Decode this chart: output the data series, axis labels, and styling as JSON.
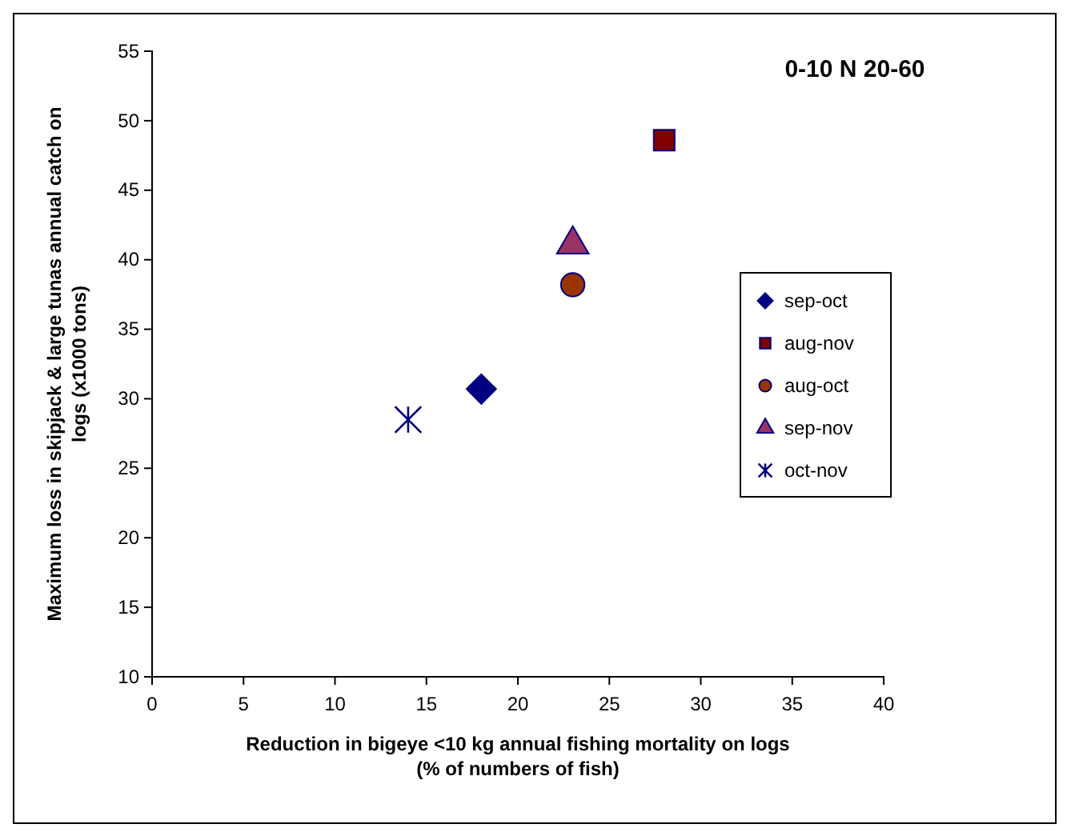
{
  "chart_data": {
    "type": "scatter",
    "title": "0-10 N 20-60",
    "xlabel": "Reduction in bigeye <10 kg annual fishing mortality on logs\n(% of numbers of fish)",
    "ylabel": "Maximum loss in skipjack & large tunas annual catch on\nlogs (x1000 tons)",
    "xlim": [
      0,
      40
    ],
    "xticks": [
      0,
      5,
      10,
      15,
      20,
      25,
      30,
      35,
      40
    ],
    "ylim": [
      10,
      55
    ],
    "yticks": [
      10,
      15,
      20,
      25,
      30,
      35,
      40,
      45,
      50,
      55
    ],
    "grid": false,
    "legend": "right",
    "series": [
      {
        "name": "sep-oct",
        "color": "#000080",
        "marker": "diamond",
        "x": [
          18
        ],
        "values": [
          30.7
        ]
      },
      {
        "name": "aug-nov",
        "color": "#800000",
        "marker": "square",
        "x": [
          28
        ],
        "values": [
          48.6
        ]
      },
      {
        "name": "aug-oct",
        "color": "#993300",
        "marker": "circle",
        "x": [
          23
        ],
        "values": [
          38.2
        ]
      },
      {
        "name": "sep-nov",
        "color": "#993366",
        "marker": "triangle",
        "x": [
          23
        ],
        "values": [
          41.1
        ]
      },
      {
        "name": "oct-nov",
        "color": "#000080",
        "marker": "cross",
        "x": [
          14
        ],
        "values": [
          28.5
        ]
      }
    ]
  }
}
